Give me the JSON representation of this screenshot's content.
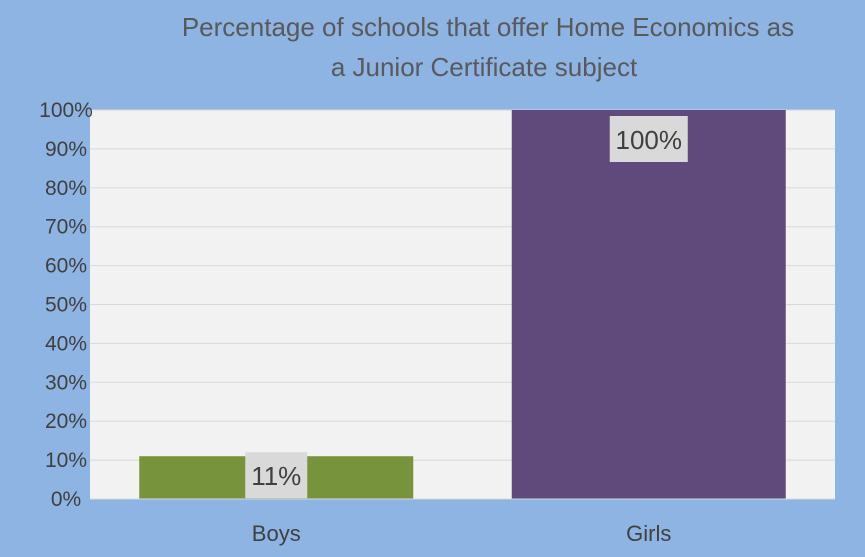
{
  "chart_data": {
    "type": "bar",
    "title_lines": [
      "Percentage of schools that offer Home Economics as",
      "a Junior Certificate subject"
    ],
    "categories": [
      "Boys",
      "Girls"
    ],
    "values": [
      11,
      100
    ],
    "data_labels": [
      "11%",
      "100%"
    ],
    "bar_colors": [
      "#77933C",
      "#604A7B"
    ],
    "ylim": [
      0,
      100
    ],
    "yticks": [
      0,
      10,
      20,
      30,
      40,
      50,
      60,
      70,
      80,
      90,
      100
    ],
    "ytick_labels": [
      "0%",
      "10%",
      "20%",
      "30%",
      "40%",
      "50%",
      "60%",
      "70%",
      "80%",
      "90%",
      "100%"
    ],
    "grid": true,
    "legend": "none"
  },
  "colors": {
    "background": "#8EB4E3",
    "plot_area": "#F2F2F2",
    "gridline": "#D9D9D9",
    "label_box": "#D9D9D9"
  }
}
